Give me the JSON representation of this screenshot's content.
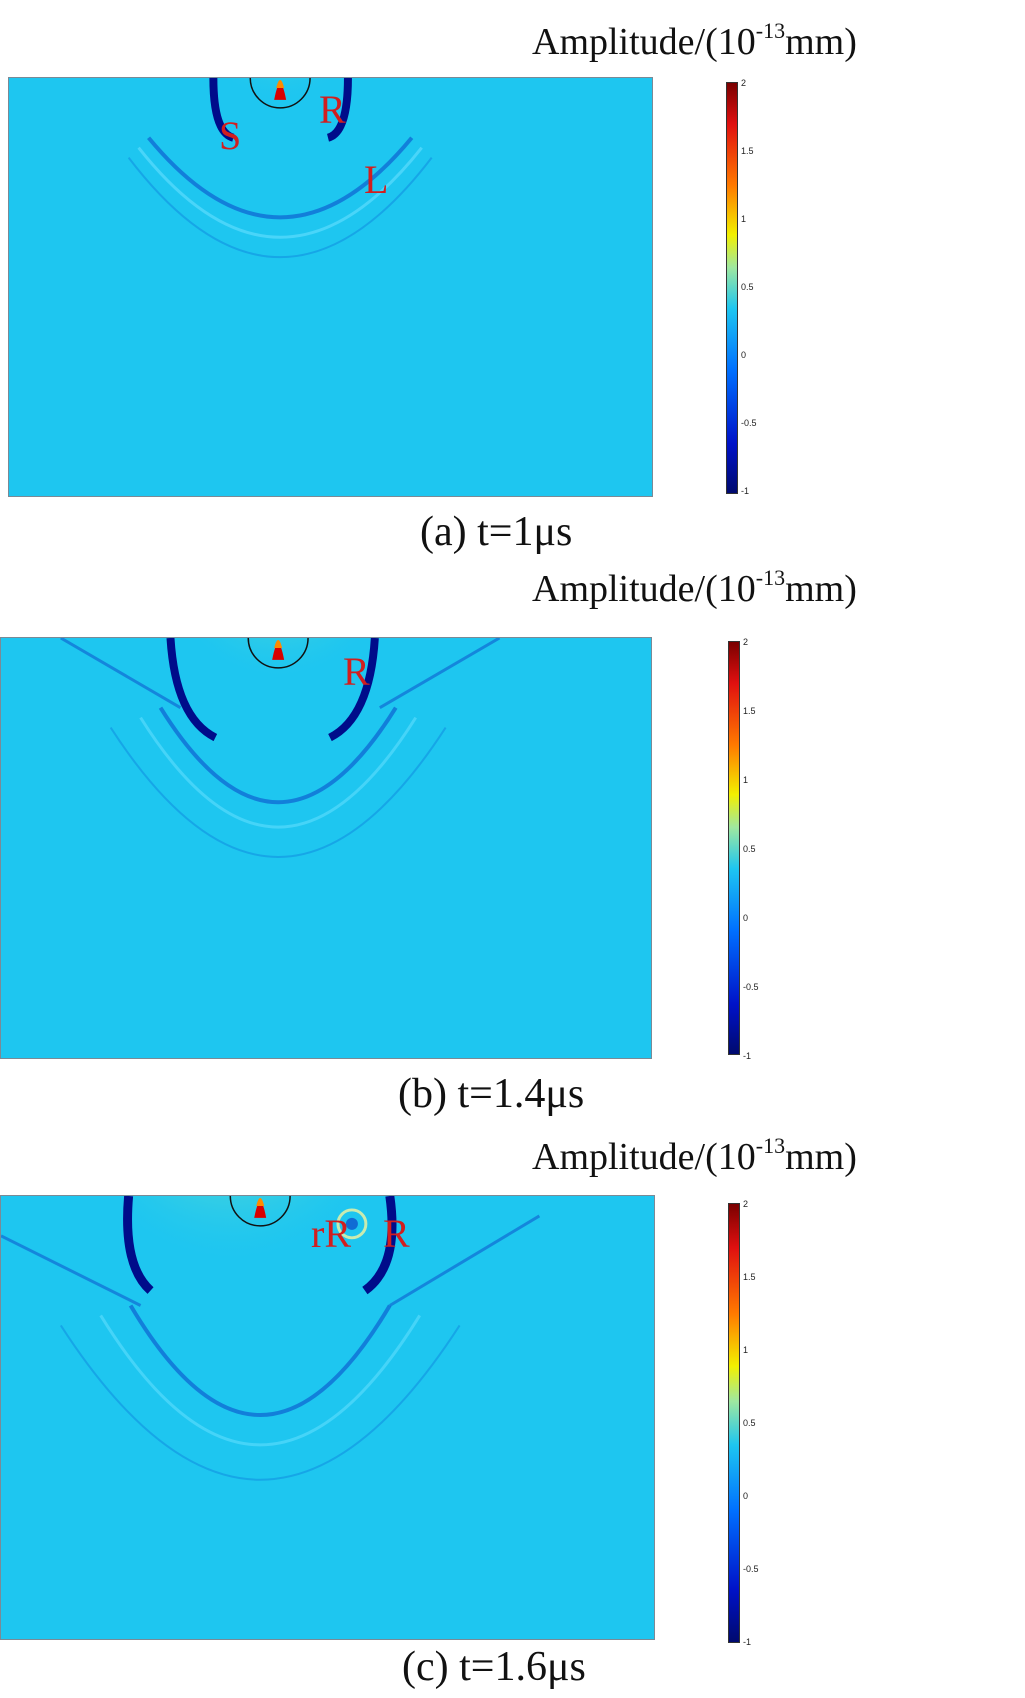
{
  "panels": [
    {
      "unit_label_prefix": "Amplitude/(10",
      "unit_label_exp": "-13",
      "unit_label_suffix": "mm)",
      "caption": "(a) t=1μs",
      "wave_labels": [
        "S",
        "R",
        "L"
      ],
      "colorbar_ticks": [
        "2",
        "1.5",
        "1",
        "0.5",
        "0",
        "-0.5",
        "-1"
      ]
    },
    {
      "unit_label_prefix": "Amplitude/(10",
      "unit_label_exp": "-13",
      "unit_label_suffix": "mm)",
      "caption": "(b) t=1.4μs",
      "wave_labels": [
        "R"
      ],
      "colorbar_ticks": [
        "2",
        "1.5",
        "1",
        "0.5",
        "0",
        "-0.5",
        "-1"
      ]
    },
    {
      "unit_label_prefix": "Amplitude/(10",
      "unit_label_exp": "-13",
      "unit_label_suffix": "mm)",
      "caption": "(c) t=1.6μs",
      "wave_labels": [
        "rR",
        "R"
      ],
      "colorbar_ticks": [
        "2",
        "1.5",
        "1",
        "0.5",
        "0",
        "-0.5",
        "-1"
      ]
    }
  ],
  "colors": {
    "background_field": "#1ec6f0",
    "label_red": "#d21e1e"
  }
}
